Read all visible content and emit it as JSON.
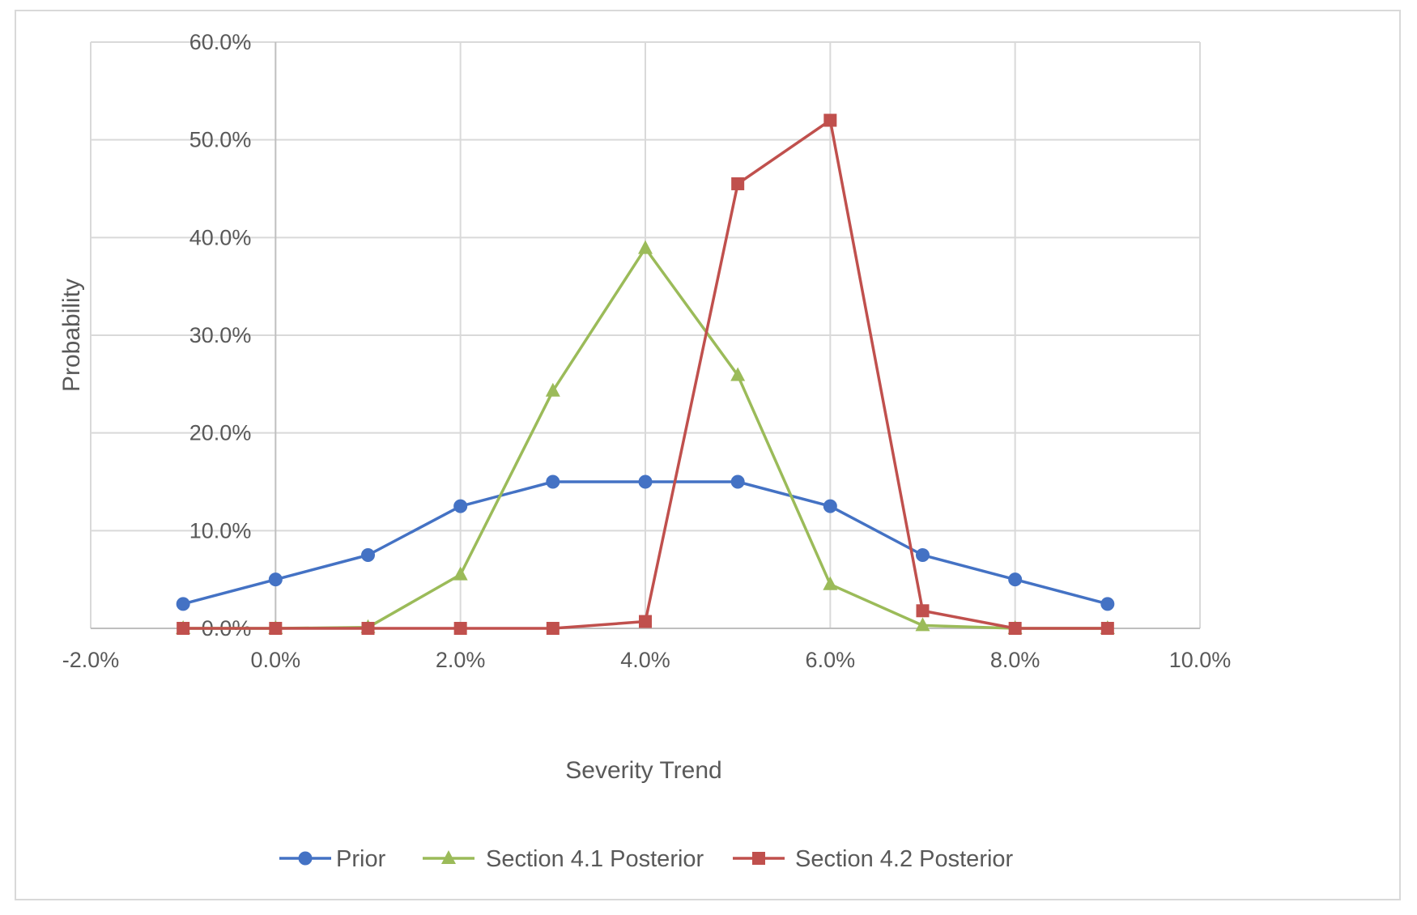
{
  "chart_data": {
    "type": "scatter",
    "xlabel": "Severity Trend",
    "ylabel": "Probability",
    "xlim": [
      -0.02,
      0.1
    ],
    "ylim": [
      0,
      0.6
    ],
    "x_ticks": [
      -0.02,
      0.0,
      0.02,
      0.04,
      0.06,
      0.08,
      0.1
    ],
    "y_ticks": [
      0.0,
      0.1,
      0.2,
      0.3,
      0.4,
      0.5,
      0.6
    ],
    "x_tick_labels": [
      "-2.0%",
      "0.0%",
      "2.0%",
      "4.0%",
      "6.0%",
      "8.0%",
      "10.0%"
    ],
    "y_tick_labels": [
      "0.0%",
      "10.0%",
      "20.0%",
      "30.0%",
      "40.0%",
      "50.0%",
      "60.0%"
    ],
    "grid": true,
    "legend_position": "bottom",
    "x": [
      -0.01,
      0.0,
      0.01,
      0.02,
      0.03,
      0.04,
      0.05,
      0.06,
      0.07,
      0.08,
      0.09
    ],
    "series": [
      {
        "name": "Prior",
        "color": "#4472C4",
        "marker": "circle",
        "values": [
          0.025,
          0.05,
          0.075,
          0.125,
          0.15,
          0.15,
          0.15,
          0.125,
          0.075,
          0.05,
          0.025
        ]
      },
      {
        "name": "Section 4.1 Posterior",
        "color": "#9BBB59",
        "marker": "triangle",
        "values": [
          0.0,
          0.0,
          0.001,
          0.055,
          0.243,
          0.389,
          0.259,
          0.045,
          0.003,
          0.0,
          0.0
        ]
      },
      {
        "name": "Section 4.2 Posterior",
        "color": "#C0504D",
        "marker": "square",
        "values": [
          0.0,
          0.0,
          0.0,
          0.0,
          0.0,
          0.007,
          0.455,
          0.52,
          0.018,
          0.0,
          0.0
        ]
      }
    ]
  }
}
